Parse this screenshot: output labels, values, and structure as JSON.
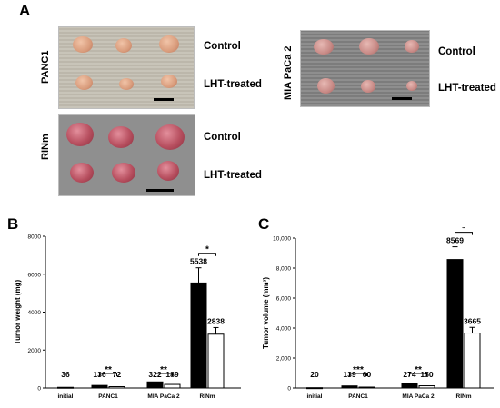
{
  "figure": {
    "panel_a": "A",
    "panel_b": "B",
    "panel_c": "C",
    "photos": {
      "panc1": {
        "cell_line": "PANC1",
        "row_top": "Control",
        "row_bottom": "LHT-treated"
      },
      "mia": {
        "cell_line": "MIA PaCa 2",
        "row_top": "Control",
        "row_bottom": "LHT-treated"
      },
      "rinm": {
        "cell_line": "RINm",
        "row_top": "Control",
        "row_bottom": "LHT-treated"
      }
    }
  },
  "chart_data": [
    {
      "type": "bar",
      "panel": "B",
      "ylabel": "Tumor weight (mg)",
      "ylim": [
        0,
        8000
      ],
      "yticks": [
        "0",
        "2000",
        "4000",
        "6000",
        "8000"
      ],
      "groups": [
        {
          "label": "initial",
          "values": [
            36
          ],
          "display": [
            "36"
          ]
        },
        {
          "label": "PANC1",
          "values": [
            136,
            72
          ],
          "display": [
            "136",
            "72"
          ],
          "sig": "**"
        },
        {
          "label": "MIA PaCa 2",
          "values": [
            322,
            189
          ],
          "display": [
            "322",
            "189"
          ],
          "sig": "**"
        },
        {
          "label": "RINm",
          "values": [
            5538,
            2838
          ],
          "display": [
            "5538",
            "2838"
          ],
          "sig": "*",
          "errors": [
            800,
            350
          ]
        }
      ],
      "colors": {
        "control": "#000000",
        "treated": "#ffffff"
      }
    },
    {
      "type": "bar",
      "panel": "C",
      "ylabel": "Tumor volume (mm³)",
      "ylim": [
        0,
        10000
      ],
      "yticks": [
        "0",
        "2,000",
        "4,000",
        "6,000",
        "8,000",
        "10,000"
      ],
      "groups": [
        {
          "label": "initial",
          "values": [
            20
          ],
          "display": [
            "20"
          ]
        },
        {
          "label": "PANC1",
          "values": [
            139,
            60
          ],
          "display": [
            "139",
            "60"
          ],
          "sig": "***"
        },
        {
          "label": "MIA PaCa 2",
          "values": [
            274,
            150
          ],
          "display": [
            "274",
            "150"
          ],
          "sig": "**"
        },
        {
          "label": "RINm",
          "values": [
            8569,
            3665
          ],
          "display": [
            "8569",
            "3665"
          ],
          "sig": "*",
          "errors": [
            850,
            380
          ]
        }
      ],
      "colors": {
        "control": "#000000",
        "treated": "#ffffff"
      }
    }
  ]
}
